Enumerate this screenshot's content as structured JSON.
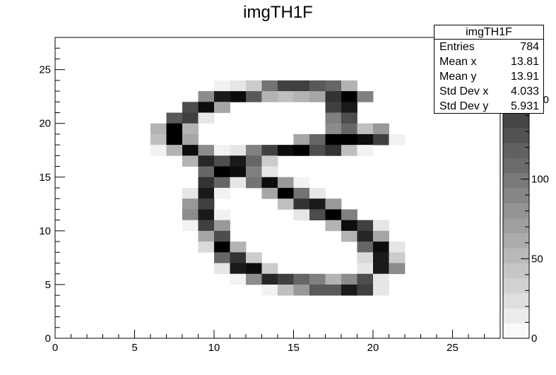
{
  "chart_data": {
    "type": "heatmap",
    "title": "imgTH1F",
    "xlim": [
      0,
      28
    ],
    "ylim": [
      0,
      28
    ],
    "zlim": [
      0,
      189
    ],
    "x_ticks": [
      "0",
      "5",
      "10",
      "15",
      "20",
      "25"
    ],
    "y_ticks": [
      "0",
      "5",
      "10",
      "15",
      "20",
      "25"
    ],
    "z_ticks": [
      "0",
      "50",
      "100",
      "150"
    ],
    "colormap": "grayscale (white = 0, black = max)",
    "rows_top_to_bottom_from_y": 23,
    "cells": [
      [
        [
          10,
          0.05
        ],
        [
          11,
          0.1
        ],
        [
          12,
          0.2
        ],
        [
          13,
          0.55
        ],
        [
          14,
          0.75
        ],
        [
          15,
          0.75
        ],
        [
          16,
          0.65
        ],
        [
          17,
          0.6
        ],
        [
          18,
          0.3
        ]
      ],
      [
        [
          9,
          0.45
        ],
        [
          10,
          0.9
        ],
        [
          11,
          0.95
        ],
        [
          12,
          0.65
        ],
        [
          13,
          0.3
        ],
        [
          14,
          0.25
        ],
        [
          15,
          0.3
        ],
        [
          16,
          0.35
        ],
        [
          17,
          0.8
        ],
        [
          18,
          1.0
        ],
        [
          19,
          0.5
        ]
      ],
      [
        [
          8,
          0.7
        ],
        [
          9,
          0.95
        ],
        [
          10,
          0.35
        ],
        [
          17,
          0.75
        ],
        [
          18,
          0.9
        ]
      ],
      [
        [
          7,
          0.65
        ],
        [
          8,
          0.75
        ],
        [
          9,
          0.1
        ],
        [
          17,
          0.5
        ],
        [
          18,
          0.7
        ]
      ],
      [
        [
          6,
          0.3
        ],
        [
          7,
          1.0
        ],
        [
          8,
          0.3
        ],
        [
          17,
          0.45
        ],
        [
          18,
          0.6
        ],
        [
          19,
          0.25
        ],
        [
          20,
          0.4
        ]
      ],
      [
        [
          6,
          0.25
        ],
        [
          7,
          1.0
        ],
        [
          8,
          0.35
        ],
        [
          15,
          0.35
        ],
        [
          16,
          0.6
        ],
        [
          17,
          1.0
        ],
        [
          18,
          1.0
        ],
        [
          19,
          0.95
        ],
        [
          20,
          0.75
        ],
        [
          21,
          0.05
        ]
      ],
      [
        [
          6,
          0.05
        ],
        [
          7,
          0.3
        ],
        [
          8,
          0.95
        ],
        [
          9,
          0.45
        ],
        [
          10,
          0.05
        ],
        [
          11,
          0.1
        ],
        [
          12,
          0.5
        ],
        [
          13,
          0.75
        ],
        [
          14,
          0.95
        ],
        [
          15,
          1.0
        ],
        [
          16,
          0.7
        ],
        [
          17,
          0.8
        ],
        [
          18,
          0.25
        ],
        [
          19,
          0.05
        ]
      ],
      [
        [
          8,
          0.3
        ],
        [
          9,
          0.85
        ],
        [
          10,
          0.7
        ],
        [
          11,
          0.9
        ],
        [
          12,
          0.6
        ],
        [
          13,
          0.2
        ]
      ],
      [
        [
          9,
          0.6
        ],
        [
          10,
          1.0
        ],
        [
          11,
          0.95
        ],
        [
          12,
          0.5
        ],
        [
          13,
          0.1
        ]
      ],
      [
        [
          9,
          0.8
        ],
        [
          10,
          0.6
        ],
        [
          11,
          0.1
        ],
        [
          12,
          0.55
        ],
        [
          13,
          0.95
        ],
        [
          14,
          0.4
        ],
        [
          15,
          0.05
        ]
      ],
      [
        [
          8,
          0.1
        ],
        [
          9,
          0.9
        ],
        [
          10,
          0.05
        ],
        [
          13,
          0.35
        ],
        [
          14,
          1.0
        ],
        [
          15,
          0.55
        ],
        [
          16,
          0.1
        ]
      ],
      [
        [
          8,
          0.4
        ],
        [
          9,
          0.75
        ],
        [
          14,
          0.25
        ],
        [
          15,
          0.8
        ],
        [
          16,
          0.9
        ],
        [
          17,
          0.4
        ]
      ],
      [
        [
          8,
          0.45
        ],
        [
          9,
          0.9
        ],
        [
          10,
          0.05
        ],
        [
          15,
          0.1
        ],
        [
          16,
          0.7
        ],
        [
          17,
          1.0
        ],
        [
          18,
          0.5
        ]
      ],
      [
        [
          8,
          0.05
        ],
        [
          9,
          0.75
        ],
        [
          10,
          0.4
        ],
        [
          17,
          0.3
        ],
        [
          18,
          0.95
        ],
        [
          19,
          0.75
        ],
        [
          20,
          0.1
        ]
      ],
      [
        [
          9,
          0.35
        ],
        [
          10,
          0.7
        ],
        [
          18,
          0.3
        ],
        [
          19,
          0.85
        ],
        [
          20,
          0.35
        ]
      ],
      [
        [
          9,
          0.15
        ],
        [
          10,
          1.0
        ],
        [
          11,
          0.3
        ],
        [
          19,
          0.6
        ],
        [
          20,
          0.95
        ],
        [
          21,
          0.1
        ]
      ],
      [
        [
          10,
          0.6
        ],
        [
          11,
          0.8
        ],
        [
          12,
          0.2
        ],
        [
          19,
          0.15
        ],
        [
          20,
          0.9
        ],
        [
          21,
          0.2
        ]
      ],
      [
        [
          10,
          0.1
        ],
        [
          11,
          0.9
        ],
        [
          12,
          0.95
        ],
        [
          13,
          0.2
        ],
        [
          19,
          0.1
        ],
        [
          20,
          0.9
        ],
        [
          21,
          0.45
        ]
      ],
      [
        [
          11,
          0.05
        ],
        [
          12,
          0.45
        ],
        [
          13,
          0.85
        ],
        [
          14,
          0.75
        ],
        [
          15,
          0.6
        ],
        [
          16,
          0.5
        ],
        [
          17,
          0.3
        ],
        [
          18,
          0.45
        ],
        [
          19,
          0.7
        ],
        [
          20,
          0.1
        ]
      ],
      [
        [
          13,
          0.05
        ],
        [
          14,
          0.25
        ],
        [
          15,
          0.4
        ],
        [
          16,
          0.65
        ],
        [
          17,
          0.65
        ],
        [
          18,
          0.9
        ],
        [
          19,
          0.75
        ],
        [
          20,
          0.1
        ]
      ]
    ]
  },
  "stats_box": {
    "title": "imgTH1F",
    "rows": [
      {
        "key": "Entries",
        "value": "784"
      },
      {
        "key": "Mean x",
        "value": "13.81"
      },
      {
        "key": "Mean y",
        "value": "13.91"
      },
      {
        "key": "Std Dev x",
        "value": "4.033"
      },
      {
        "key": "Std Dev y",
        "value": "5.931"
      }
    ]
  }
}
